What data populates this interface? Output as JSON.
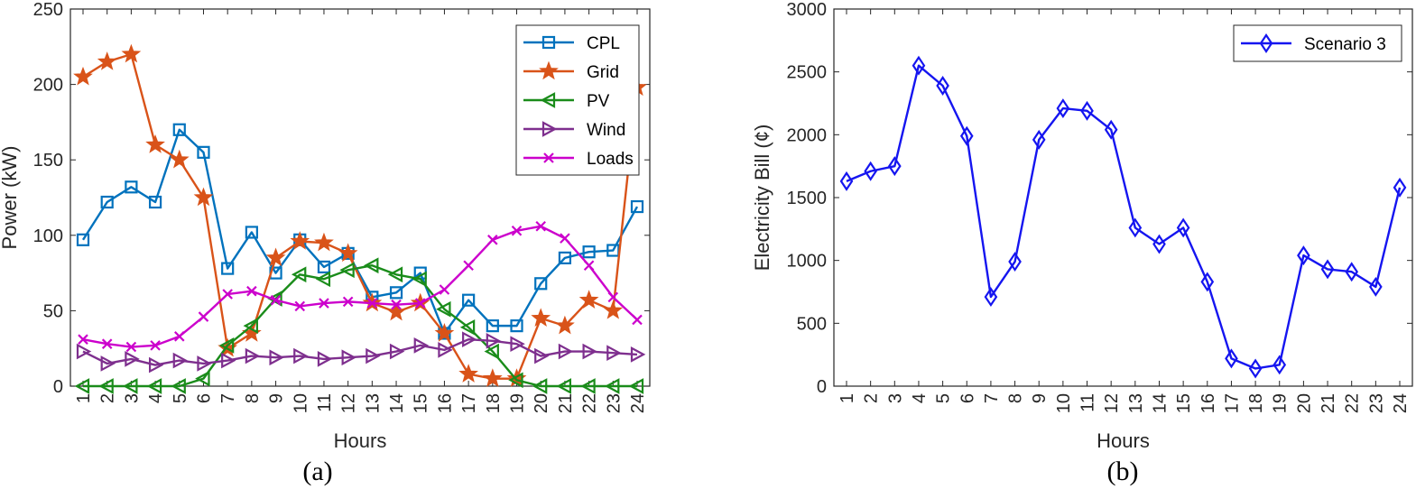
{
  "chart_data": [
    {
      "type": "line",
      "caption": "(a)",
      "xlabel": "Hours",
      "ylabel": "Power (kW)",
      "ylim": [
        0,
        250
      ],
      "yticks": [
        0,
        50,
        100,
        150,
        200,
        250
      ],
      "legend_position": "top-right",
      "x": [
        1,
        2,
        3,
        4,
        5,
        6,
        7,
        8,
        9,
        10,
        11,
        12,
        13,
        14,
        15,
        16,
        17,
        18,
        19,
        20,
        21,
        22,
        23,
        24
      ],
      "series": [
        {
          "name": "CPL",
          "color": "#0072BD",
          "marker": "square",
          "values": [
            97,
            122,
            132,
            122,
            170,
            155,
            78,
            102,
            75,
            97,
            79,
            88,
            59,
            62,
            75,
            35,
            57,
            40,
            40,
            68,
            85,
            89,
            90,
            119
          ]
        },
        {
          "name": "Grid",
          "color": "#D95319",
          "marker": "star",
          "values": [
            205,
            215,
            220,
            160,
            150,
            125,
            25,
            35,
            85,
            96,
            95,
            88,
            55,
            49,
            55,
            35,
            8,
            5,
            5,
            45,
            40,
            57,
            50,
            198
          ]
        },
        {
          "name": "PV",
          "color": "#1A8C1A",
          "marker": "triangle-left",
          "values": [
            0,
            0,
            0,
            0,
            0,
            5,
            27,
            40,
            58,
            74,
            71,
            77,
            80,
            74,
            71,
            51,
            39,
            23,
            4,
            0,
            0,
            0,
            0,
            0
          ]
        },
        {
          "name": "Wind",
          "color": "#7E2F8E",
          "marker": "triangle-right",
          "values": [
            23,
            15,
            18,
            14,
            17,
            15,
            17,
            20,
            19,
            20,
            18,
            19,
            20,
            23,
            27,
            24,
            31,
            30,
            28,
            20,
            23,
            23,
            22,
            21
          ]
        },
        {
          "name": "Loads",
          "color": "#CC00CC",
          "marker": "x",
          "values": [
            31,
            28,
            26,
            27,
            33,
            46,
            61,
            63,
            57,
            53,
            55,
            56,
            55,
            54,
            55,
            64,
            80,
            97,
            103,
            106,
            98,
            80,
            59,
            44
          ]
        }
      ]
    },
    {
      "type": "line",
      "caption": "(b)",
      "xlabel": "Hours",
      "ylabel": "Electricity Bill (¢)",
      "ylim": [
        0,
        3000
      ],
      "yticks": [
        0,
        500,
        1000,
        1500,
        2000,
        2500,
        3000
      ],
      "legend_position": "top-right",
      "x": [
        1,
        2,
        3,
        4,
        5,
        6,
        7,
        8,
        9,
        10,
        11,
        12,
        13,
        14,
        15,
        16,
        17,
        18,
        19,
        20,
        21,
        22,
        23,
        24
      ],
      "series": [
        {
          "name": "Scenario 3",
          "color": "#1515F0",
          "marker": "diamond",
          "values": [
            1630,
            1710,
            1750,
            2550,
            2390,
            1990,
            710,
            990,
            1960,
            2210,
            2190,
            2040,
            1260,
            1130,
            1260,
            830,
            220,
            140,
            170,
            1040,
            930,
            910,
            790,
            1580
          ]
        }
      ]
    }
  ]
}
